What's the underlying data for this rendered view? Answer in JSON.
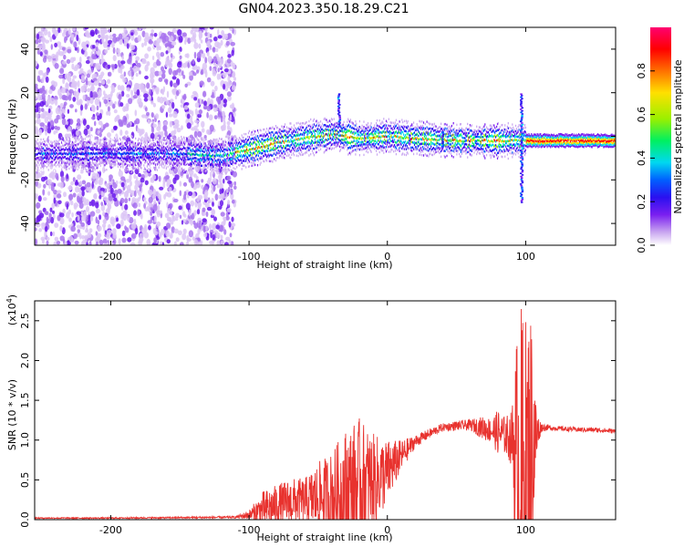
{
  "title": "GN04.2023.350.18.29.C21",
  "colors": {
    "spectrogram_background": "#ffffff",
    "snr_line": "#e8322e",
    "colormap": [
      "#ffffff",
      "#c9a6f0",
      "#7a1ff0",
      "#2a10f0",
      "#0060ff",
      "#00d8f0",
      "#00f060",
      "#9af000",
      "#ffe000",
      "#ff7000",
      "#ff0000",
      "#ff0070"
    ]
  },
  "chart_data": [
    {
      "type": "heatmap",
      "name": "spectrogram",
      "xlabel": "Height of straight line (km)",
      "ylabel": "Frequency (Hz)",
      "xlim": [
        -255,
        165
      ],
      "ylim": [
        -50,
        50
      ],
      "xticks": [
        -200,
        -100,
        0,
        100
      ],
      "xtick_labels": [
        "-200",
        "-100",
        "0",
        "100"
      ],
      "yticks": [
        -40,
        -20,
        0,
        20,
        40
      ],
      "ytick_labels": [
        "-40",
        "-20",
        "0",
        "20",
        "40"
      ],
      "colorbar": {
        "label": "Normalized spectral amplitude",
        "range": [
          0,
          1
        ],
        "ticks": [
          0.0,
          0.2,
          0.4,
          0.6,
          0.8
        ],
        "tick_labels": [
          "0.0",
          "0.2",
          "0.4",
          "0.6",
          "0.8"
        ]
      },
      "features": [
        {
          "kind": "scattered_noise",
          "x_range": [
            -255,
            -110
          ],
          "f_range": [
            -50,
            50
          ],
          "amplitude": 0.12
        },
        {
          "kind": "ridge",
          "points": [
            [
              -150,
              -8
            ],
            [
              -120,
              -9
            ],
            [
              -100,
              -6
            ],
            [
              -80,
              -3
            ],
            [
              -60,
              -1
            ],
            [
              -40,
              1
            ],
            [
              -20,
              -1
            ],
            [
              0,
              0
            ],
            [
              20,
              -1
            ],
            [
              50,
              -2
            ],
            [
              80,
              -2
            ],
            [
              100,
              -2
            ],
            [
              120,
              -2
            ],
            [
              165,
              -2
            ]
          ],
          "peak_amplitude": 1.0
        },
        {
          "kind": "streak",
          "x": 97,
          "f_range": [
            -30,
            20
          ]
        },
        {
          "kind": "streak",
          "x": -35,
          "f_range": [
            5,
            20
          ]
        },
        {
          "kind": "streak",
          "x": 40,
          "f_range": [
            -5,
            2
          ]
        }
      ]
    },
    {
      "type": "line",
      "name": "snr",
      "xlabel": "Height of straight line (km)",
      "ylabel": "SNR (10 * v/v)",
      "y_multiplier": "(x10^4)",
      "xlim": [
        -255,
        165
      ],
      "ylim": [
        0,
        27500
      ],
      "xticks": [
        -200,
        -100,
        0,
        100
      ],
      "xtick_labels": [
        "-200",
        "-100",
        "0",
        "100"
      ],
      "yticks": [
        0,
        5000,
        10000,
        15000,
        20000,
        25000
      ],
      "ytick_labels": [
        "0.0",
        "0.5",
        "1.0",
        "1.5",
        "2.0",
        "2.5"
      ],
      "envelope": {
        "x": [
          -255,
          -200,
          -150,
          -110,
          -100,
          -90,
          -80,
          -70,
          -60,
          -50,
          -40,
          -30,
          -20,
          -10,
          0,
          10,
          20,
          30,
          40,
          50,
          60,
          70,
          75,
          80,
          85,
          90,
          93,
          95,
          97,
          99,
          101,
          103,
          105,
          107,
          109,
          111,
          115,
          120,
          130,
          140,
          150,
          165
        ],
        "baseline": [
          200,
          200,
          250,
          300,
          600,
          1200,
          1800,
          2200,
          2400,
          2800,
          3000,
          3600,
          4400,
          4800,
          6000,
          8000,
          9800,
          10800,
          11600,
          11800,
          11900,
          11500,
          11200,
          11000,
          10600,
          10200,
          8000,
          5000,
          3500,
          4000,
          6000,
          8000,
          9000,
          10000,
          11000,
          11600,
          11600,
          11500,
          11400,
          11300,
          11300,
          11100
        ],
        "spread": [
          80,
          80,
          100,
          150,
          600,
          2400,
          2600,
          3000,
          2800,
          4400,
          5600,
          8000,
          8400,
          6000,
          4000,
          2000,
          800,
          600,
          500,
          600,
          700,
          1500,
          1600,
          2800,
          2400,
          3500,
          15000,
          20000,
          24000,
          23000,
          19000,
          20000,
          16000,
          6000,
          2500,
          600,
          400,
          300,
          300,
          300,
          300,
          300
        ]
      }
    }
  ],
  "axis_text": {
    "top_xlabel": "Height of straight line (km)",
    "top_ylabel": "Frequency (Hz)",
    "colorbar_label": "Normalized spectral amplitude",
    "bottom_xlabel": "Height of straight line (km)",
    "bottom_ylabel": "SNR (10 * v/v)",
    "multiplier_base": "(x10",
    "multiplier_exp": "4",
    "multiplier_close": ")"
  }
}
